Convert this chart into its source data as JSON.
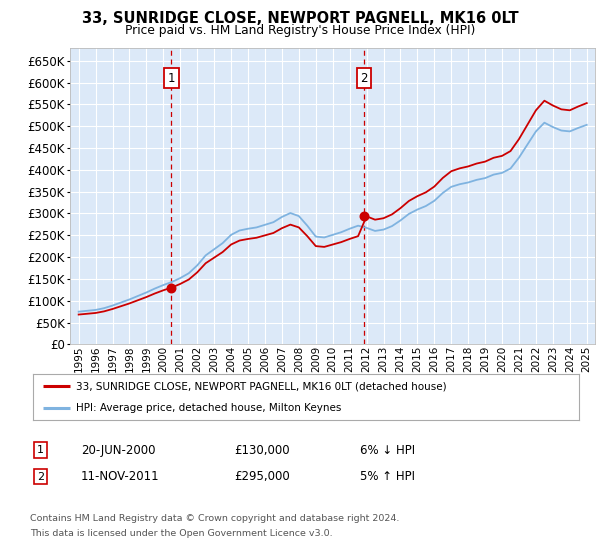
{
  "title": "33, SUNRIDGE CLOSE, NEWPORT PAGNELL, MK16 0LT",
  "subtitle": "Price paid vs. HM Land Registry's House Price Index (HPI)",
  "legend_line1": "33, SUNRIDGE CLOSE, NEWPORT PAGNELL, MK16 0LT (detached house)",
  "legend_line2": "HPI: Average price, detached house, Milton Keynes",
  "sale1_date": "20-JUN-2000",
  "sale1_price": "£130,000",
  "sale1_hpi_text": "6% ↓ HPI",
  "sale1_year": 2000.47,
  "sale1_value": 130000,
  "sale2_date": "11-NOV-2011",
  "sale2_price": "£295,000",
  "sale2_hpi_text": "5% ↑ HPI",
  "sale2_year": 2011.86,
  "sale2_value": 295000,
  "footer1": "Contains HM Land Registry data © Crown copyright and database right 2024.",
  "footer2": "This data is licensed under the Open Government Licence v3.0.",
  "yticks": [
    0,
    50000,
    100000,
    150000,
    200000,
    250000,
    300000,
    350000,
    400000,
    450000,
    500000,
    550000,
    600000,
    650000
  ],
  "xlim_start": 1994.5,
  "xlim_end": 2025.5,
  "plot_bg": "#dce9f8",
  "grid_color": "#ffffff",
  "red_color": "#cc0000",
  "blue_color": "#7fb3e0",
  "hpi_years": [
    1995,
    1995.5,
    1996,
    1996.5,
    1997,
    1997.5,
    1998,
    1998.5,
    1999,
    1999.5,
    2000,
    2000.5,
    2001,
    2001.5,
    2002,
    2002.5,
    2003,
    2003.5,
    2004,
    2004.5,
    2005,
    2005.5,
    2006,
    2006.5,
    2007,
    2007.5,
    2008,
    2008.5,
    2009,
    2009.5,
    2010,
    2010.5,
    2011,
    2011.5,
    2012,
    2012.5,
    2013,
    2013.5,
    2014,
    2014.5,
    2015,
    2015.5,
    2016,
    2016.5,
    2017,
    2017.5,
    2018,
    2018.5,
    2019,
    2019.5,
    2020,
    2020.5,
    2021,
    2021.5,
    2022,
    2022.5,
    2023,
    2023.5,
    2024,
    2024.5,
    2025
  ],
  "hpi_values": [
    75000,
    77000,
    79000,
    83000,
    89000,
    96000,
    103000,
    111000,
    119000,
    128000,
    136000,
    143000,
    152000,
    163000,
    181000,
    204000,
    218000,
    232000,
    251000,
    261000,
    265000,
    268000,
    274000,
    280000,
    292000,
    301000,
    294000,
    272000,
    247000,
    245000,
    251000,
    257000,
    265000,
    272000,
    267000,
    260000,
    263000,
    271000,
    284000,
    299000,
    309000,
    317000,
    329000,
    347000,
    361000,
    367000,
    371000,
    377000,
    381000,
    389000,
    393000,
    403000,
    428000,
    458000,
    488000,
    508000,
    498000,
    490000,
    488000,
    496000,
    503000
  ],
  "xtick_years": [
    1995,
    1996,
    1997,
    1998,
    1999,
    2000,
    2001,
    2002,
    2003,
    2004,
    2005,
    2006,
    2007,
    2008,
    2009,
    2010,
    2011,
    2012,
    2013,
    2014,
    2015,
    2016,
    2017,
    2018,
    2019,
    2020,
    2021,
    2022,
    2023,
    2024,
    2025
  ]
}
